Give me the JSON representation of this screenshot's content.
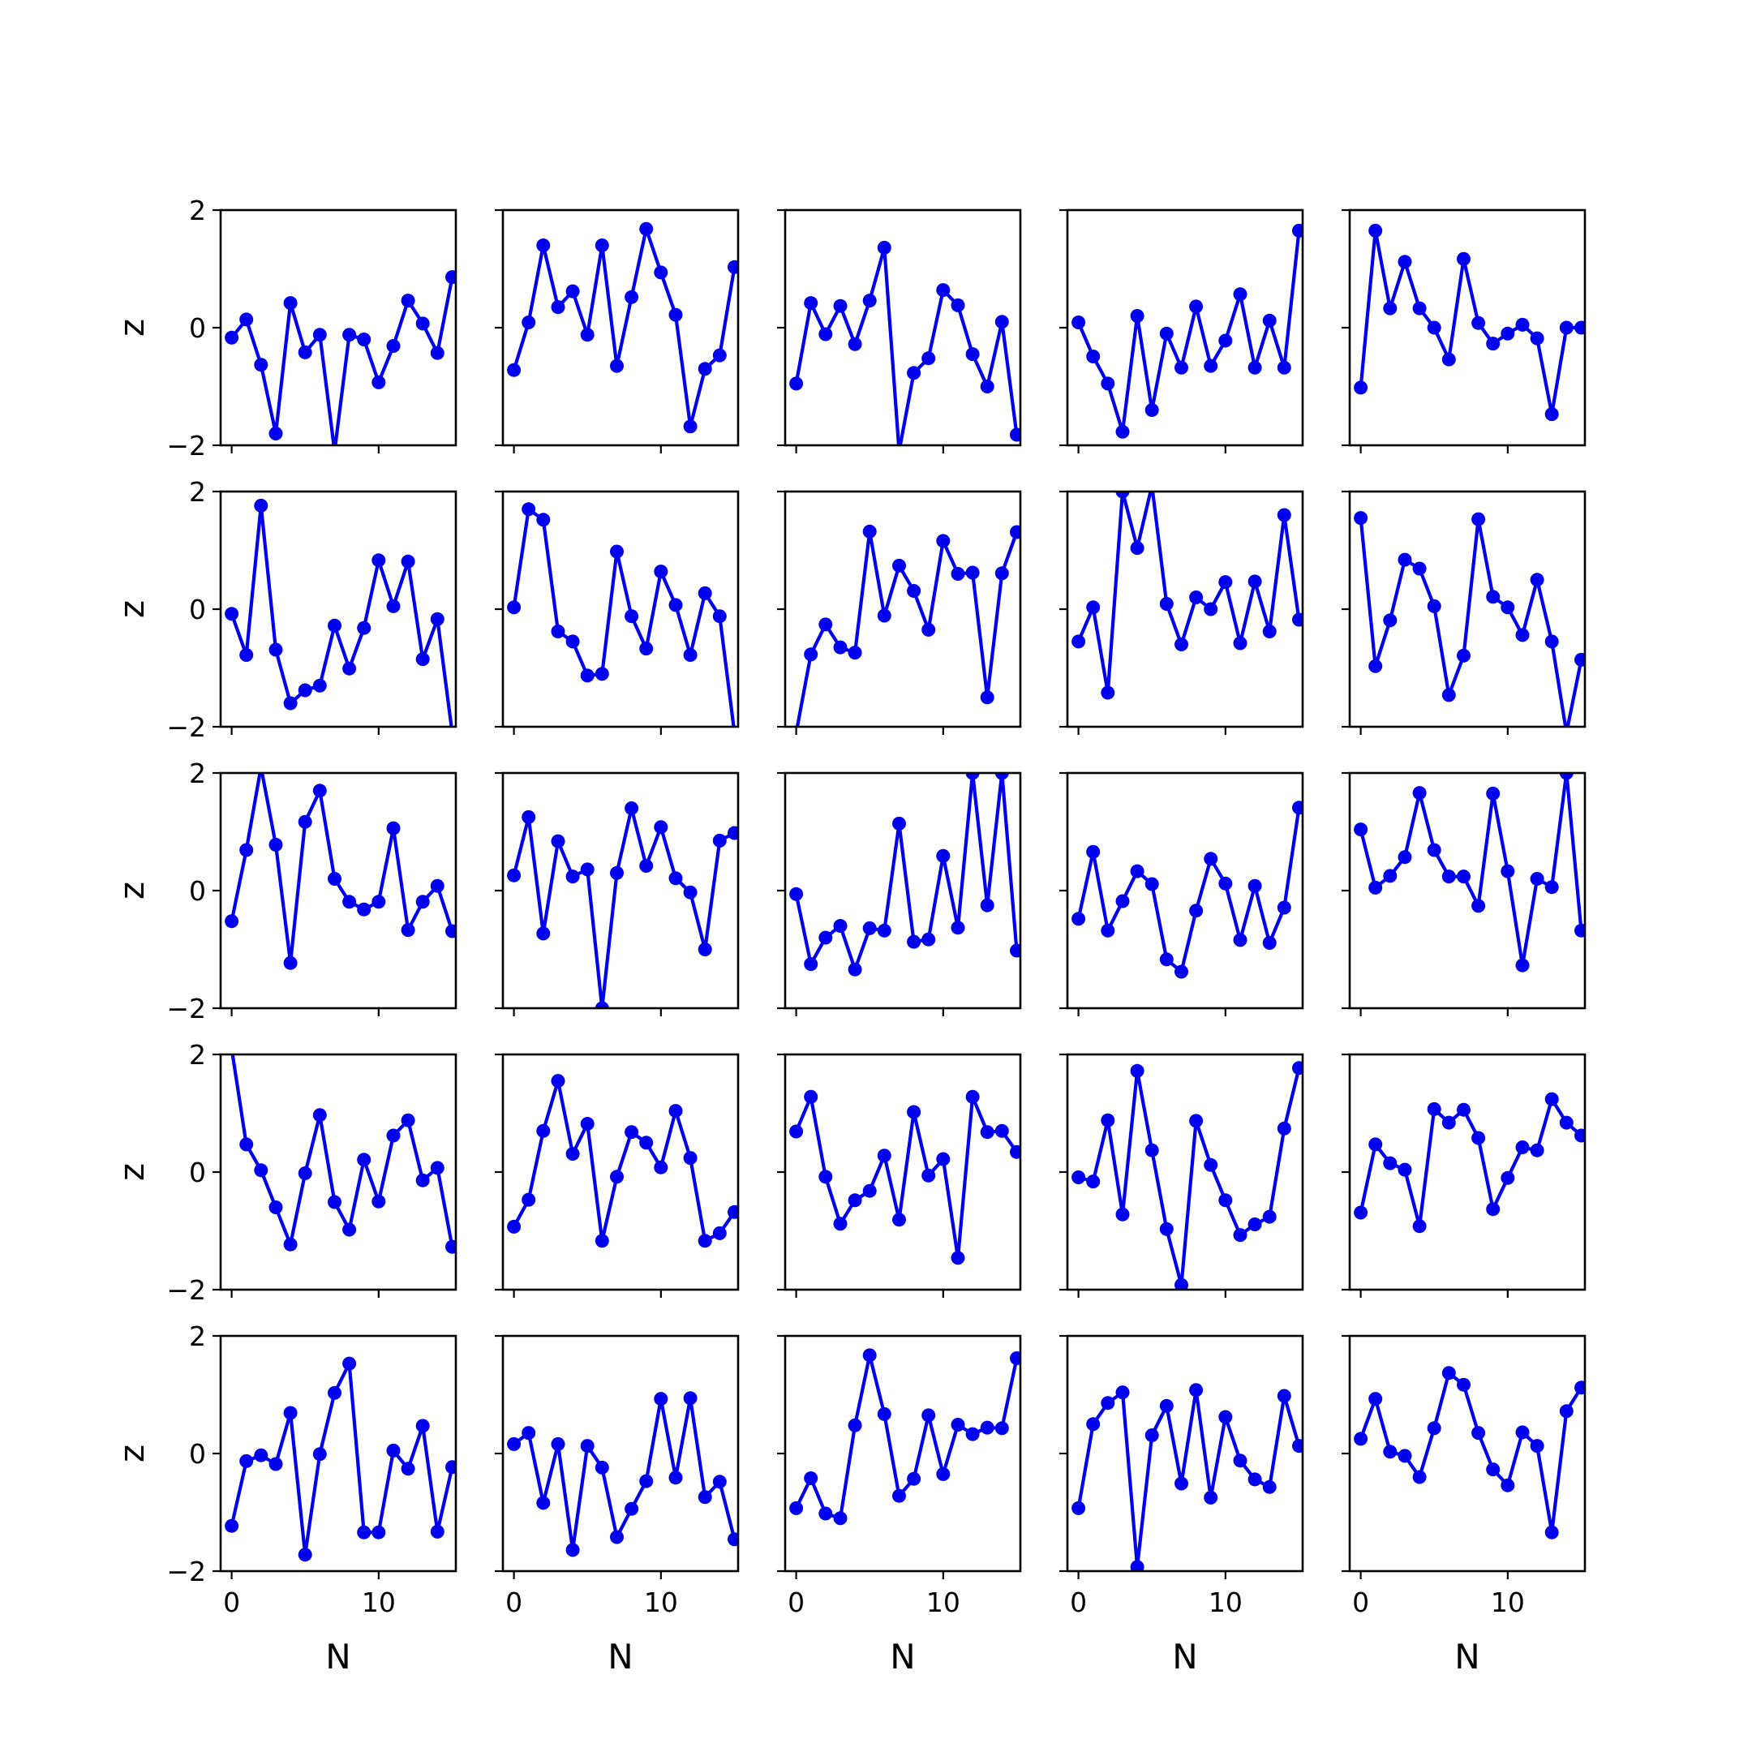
{
  "chart_data": {
    "type": "line",
    "layout": "5x5 grid of small multiples",
    "xlabel": "N",
    "ylabel": "z",
    "xlim": [
      -0.75,
      15.25
    ],
    "ylim": [
      -2,
      2
    ],
    "x_ticks": [
      0,
      10
    ],
    "y_ticks": [
      -2,
      0,
      2
    ],
    "x_tick_labels": [
      "0",
      "10"
    ],
    "y_tick_labels": [
      "−2",
      "0",
      "2"
    ],
    "x": [
      0,
      1,
      2,
      3,
      4,
      5,
      6,
      7,
      8,
      9,
      10,
      11,
      12,
      13,
      14,
      15
    ],
    "grid": false,
    "legend": "none",
    "line_color": "#0000ee",
    "panels": [
      {
        "values": [
          -0.17,
          0.14,
          -0.63,
          -1.8,
          0.42,
          -0.42,
          -0.12,
          -2.1,
          -0.12,
          -0.2,
          -0.93,
          -0.31,
          0.46,
          0.07,
          -0.43,
          0.86
        ]
      },
      {
        "values": [
          -0.72,
          0.09,
          1.4,
          0.35,
          0.62,
          -0.12,
          1.4,
          -0.65,
          0.52,
          1.68,
          0.94,
          0.22,
          -1.68,
          -0.7,
          -0.47,
          1.03
        ]
      },
      {
        "values": [
          -0.95,
          0.42,
          -0.11,
          0.37,
          -0.28,
          0.46,
          1.36,
          -2.1,
          -0.77,
          -0.52,
          0.64,
          0.38,
          -0.45,
          -1.0,
          0.1,
          -1.82
        ]
      },
      {
        "values": [
          0.09,
          -0.49,
          -0.95,
          -1.77,
          0.2,
          -1.4,
          -0.1,
          -0.68,
          0.36,
          -0.65,
          -0.22,
          0.57,
          -0.68,
          0.12,
          -0.68,
          1.65
        ]
      },
      {
        "values": [
          -1.02,
          1.65,
          0.33,
          1.12,
          0.33,
          0.0,
          -0.54,
          1.17,
          0.08,
          -0.27,
          -0.1,
          0.05,
          -0.18,
          -1.47,
          0.0,
          0.0
        ]
      },
      {
        "values": [
          -0.08,
          -0.78,
          1.76,
          -0.69,
          -1.6,
          -1.38,
          -1.3,
          -0.28,
          -1.01,
          -0.32,
          0.83,
          0.05,
          0.81,
          -0.85,
          -0.17,
          -2.1
        ]
      },
      {
        "values": [
          0.03,
          1.7,
          1.52,
          -0.38,
          -0.55,
          -1.13,
          -1.1,
          0.98,
          -0.12,
          -0.67,
          0.64,
          0.07,
          -0.78,
          0.27,
          -0.12,
          -2.1
        ]
      },
      {
        "values": [
          -2.1,
          -0.77,
          -0.26,
          -0.65,
          -0.74,
          1.32,
          -0.11,
          0.74,
          0.31,
          -0.35,
          1.16,
          0.6,
          0.62,
          -1.5,
          0.61,
          1.31
        ]
      },
      {
        "values": [
          -0.55,
          0.03,
          -1.42,
          2.0,
          1.04,
          2.1,
          0.09,
          -0.6,
          0.2,
          0.0,
          0.46,
          -0.58,
          0.47,
          -0.38,
          1.6,
          -0.18
        ]
      },
      {
        "values": [
          1.55,
          -0.97,
          -0.19,
          0.84,
          0.69,
          0.05,
          -1.46,
          -0.79,
          1.53,
          0.21,
          0.03,
          -0.44,
          0.5,
          -0.55,
          -2.1,
          -0.86
        ]
      },
      {
        "values": [
          -0.52,
          0.69,
          2.1,
          0.78,
          -1.23,
          1.17,
          1.7,
          0.2,
          -0.19,
          -0.32,
          -0.19,
          1.06,
          -0.67,
          -0.19,
          0.08,
          -0.69
        ]
      },
      {
        "values": [
          0.26,
          1.25,
          -0.73,
          0.84,
          0.24,
          0.36,
          -2.0,
          0.3,
          1.4,
          0.42,
          1.08,
          0.21,
          -0.03,
          -1.0,
          0.85,
          0.98
        ]
      },
      {
        "values": [
          -0.06,
          -1.25,
          -0.8,
          -0.6,
          -1.34,
          -0.64,
          -0.68,
          1.14,
          -0.87,
          -0.83,
          0.59,
          -0.63,
          2.0,
          -0.25,
          2.0,
          -1.02
        ]
      },
      {
        "values": [
          -0.48,
          0.66,
          -0.68,
          -0.18,
          0.33,
          0.11,
          -1.17,
          -1.38,
          -0.34,
          0.54,
          0.12,
          -0.84,
          0.08,
          -0.89,
          -0.29,
          1.41
        ]
      },
      {
        "values": [
          1.04,
          0.05,
          0.25,
          0.57,
          1.66,
          0.69,
          0.24,
          0.24,
          -0.26,
          1.65,
          0.33,
          -1.27,
          0.2,
          0.06,
          2.0,
          -0.68
        ]
      },
      {
        "values": [
          2.1,
          0.47,
          0.03,
          -0.6,
          -1.23,
          -0.02,
          0.97,
          -0.51,
          -0.98,
          0.21,
          -0.5,
          0.62,
          0.88,
          -0.14,
          0.07,
          -1.27
        ]
      },
      {
        "values": [
          -0.93,
          -0.47,
          0.7,
          1.55,
          0.31,
          0.82,
          -1.17,
          -0.08,
          0.68,
          0.5,
          0.08,
          1.04,
          0.24,
          -1.17,
          -1.04,
          -0.68
        ]
      },
      {
        "values": [
          0.69,
          1.28,
          -0.08,
          -0.88,
          -0.48,
          -0.32,
          0.28,
          -0.81,
          1.02,
          -0.06,
          0.22,
          -1.46,
          1.28,
          0.68,
          0.7,
          0.34
        ]
      },
      {
        "values": [
          -0.09,
          -0.16,
          0.88,
          -0.72,
          1.72,
          0.37,
          -0.97,
          -1.92,
          0.87,
          0.12,
          -0.48,
          -1.07,
          -0.89,
          -0.76,
          0.74,
          1.77
        ]
      },
      {
        "values": [
          -0.69,
          0.47,
          0.15,
          0.04,
          -0.92,
          1.07,
          0.84,
          1.06,
          0.58,
          -0.63,
          -0.1,
          0.42,
          0.37,
          1.24,
          0.84,
          0.62
        ]
      },
      {
        "values": [
          -1.23,
          -0.13,
          -0.03,
          -0.18,
          0.69,
          -1.72,
          -0.01,
          1.03,
          1.53,
          -1.34,
          -1.34,
          0.05,
          -0.26,
          0.47,
          -1.33,
          -0.23
        ]
      },
      {
        "values": [
          0.16,
          0.35,
          -0.84,
          0.16,
          -1.64,
          0.13,
          -0.24,
          -1.42,
          -0.94,
          -0.47,
          0.93,
          -0.41,
          0.94,
          -0.74,
          -0.48,
          -1.46
        ]
      },
      {
        "values": [
          -0.93,
          -0.42,
          -1.02,
          -1.1,
          0.48,
          1.67,
          0.67,
          -0.72,
          -0.43,
          0.65,
          -0.35,
          0.49,
          0.33,
          0.44,
          0.43,
          1.62
        ]
      },
      {
        "values": [
          -0.93,
          0.5,
          0.86,
          1.04,
          -1.93,
          0.31,
          0.81,
          -0.51,
          1.08,
          -0.75,
          0.62,
          -0.12,
          -0.44,
          -0.57,
          0.98,
          0.13
        ]
      },
      {
        "values": [
          0.25,
          0.93,
          0.03,
          -0.04,
          -0.4,
          0.43,
          1.37,
          1.17,
          0.35,
          -0.27,
          -0.54,
          0.36,
          0.13,
          -1.34,
          0.72,
          1.12
        ]
      }
    ]
  }
}
